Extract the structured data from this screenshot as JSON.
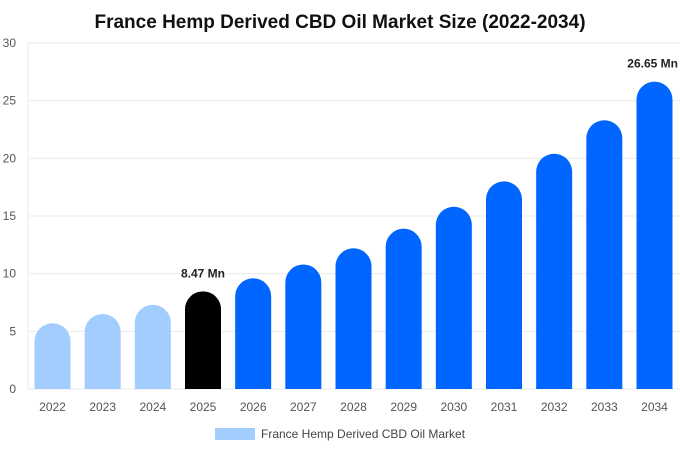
{
  "chart_data": {
    "type": "bar",
    "title": "France Hemp Derived CBD Oil Market Size (2022-2034)",
    "xlabel": "",
    "ylabel": "",
    "categories": [
      "2022",
      "2023",
      "2024",
      "2025",
      "2026",
      "2027",
      "2028",
      "2029",
      "2030",
      "2031",
      "2032",
      "2033",
      "2034"
    ],
    "series": [
      {
        "name": "France Hemp Derived CBD Oil Market",
        "values": [
          5.7,
          6.5,
          7.3,
          8.47,
          9.6,
          10.8,
          12.2,
          13.9,
          15.8,
          18.0,
          20.4,
          23.3,
          26.65
        ]
      }
    ],
    "bar_colors": [
      "#a3cdff",
      "#a3cdff",
      "#a3cdff",
      "#000000",
      "#0066ff",
      "#0066ff",
      "#0066ff",
      "#0066ff",
      "#0066ff",
      "#0066ff",
      "#0066ff",
      "#0066ff",
      "#0066ff"
    ],
    "data_labels": [
      {
        "index": 3,
        "text": "8.47 Mn"
      },
      {
        "index": 12,
        "text": "26.65 Mn"
      }
    ],
    "ylim": [
      0,
      30
    ],
    "yticks": [
      0,
      5,
      10,
      15,
      20,
      25,
      30
    ],
    "grid": true,
    "legend": {
      "position": "bottom",
      "label": "France Hemp Derived CBD Oil Market",
      "color": "#a3cdff"
    }
  }
}
